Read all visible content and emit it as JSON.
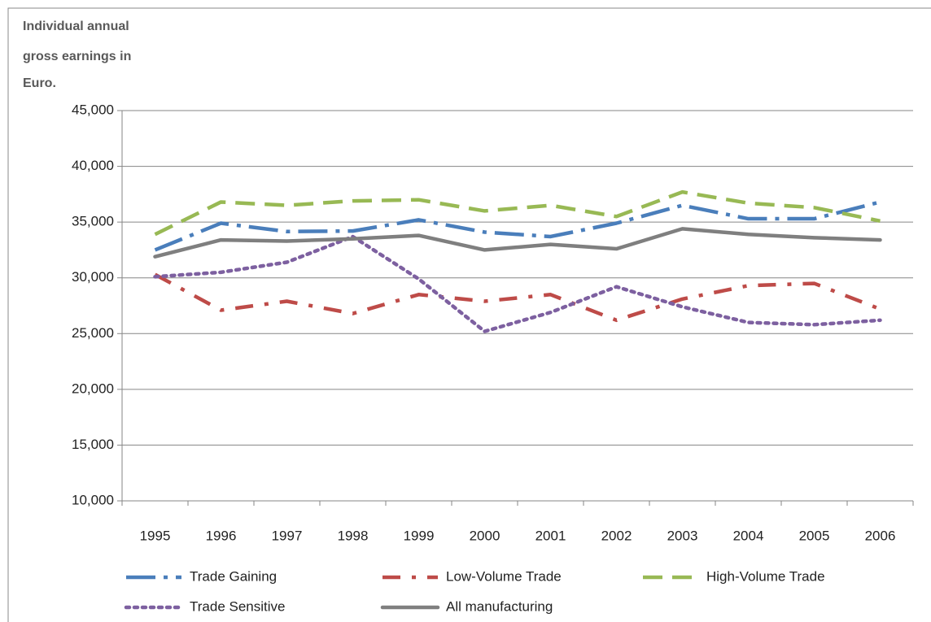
{
  "chart_data": {
    "type": "line",
    "y_label": [
      "Individual annual",
      "gross earnings in",
      "Euro."
    ],
    "categories": [
      "1995",
      "1996",
      "1997",
      "1998",
      "1999",
      "2000",
      "2001",
      "2002",
      "2003",
      "2004",
      "2005",
      "2006"
    ],
    "series": [
      {
        "name": "Trade Gaining",
        "color": "#4a7ebb",
        "values": [
          32500,
          34900,
          34150,
          34200,
          35200,
          34100,
          33700,
          34900,
          36500,
          35300,
          35300,
          36800
        ]
      },
      {
        "name": "Low-Volume Trade",
        "color": "#be4b48",
        "values": [
          30300,
          27100,
          27900,
          26800,
          28500,
          27900,
          28500,
          26200,
          28100,
          29300,
          29500,
          27200
        ]
      },
      {
        "name": "High-Volume Trade",
        "color": "#98b954",
        "values": [
          33900,
          36800,
          36500,
          36900,
          37000,
          36000,
          36500,
          35500,
          37700,
          36700,
          36300,
          35100
        ]
      },
      {
        "name": "Trade Sensitive",
        "color": "#7d60a0",
        "values": [
          30100,
          30500,
          31400,
          33700,
          29900,
          25200,
          26900,
          29200,
          27400,
          26000,
          25800,
          26200
        ]
      },
      {
        "name": "All manufacturing",
        "color": "#7f7f7f",
        "values": [
          31900,
          33400,
          33300,
          33500,
          33800,
          32500,
          33000,
          32600,
          34400,
          33900,
          33600,
          33400
        ]
      }
    ],
    "ylim": [
      10000,
      45000
    ],
    "yticks": [
      {
        "value": 10000,
        "label": "10,000"
      },
      {
        "value": 15000,
        "label": "15,000"
      },
      {
        "value": 20000,
        "label": "20,000"
      },
      {
        "value": 25000,
        "label": "25,000"
      },
      {
        "value": 30000,
        "label": "30,000"
      },
      {
        "value": 35000,
        "label": "35,000"
      },
      {
        "value": 40000,
        "label": "40,000"
      },
      {
        "value": 45000,
        "label": "45,000"
      }
    ],
    "grid": true
  }
}
